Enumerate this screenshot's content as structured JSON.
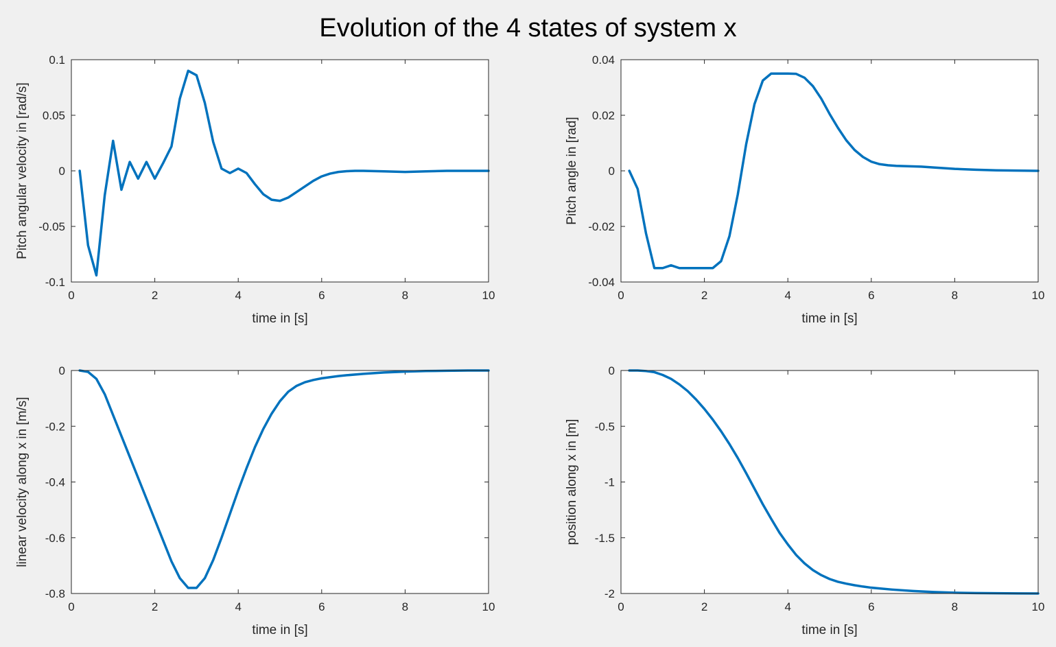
{
  "figure": {
    "title": "Evolution of the 4 states of system x",
    "line_color": "#0072BD",
    "axes_color": "#262626",
    "background": "#f0f0f0"
  },
  "chart_data": [
    {
      "type": "line",
      "xlabel": "time in [s]",
      "ylabel": "Pitch angular velocity in [rad/s]",
      "xlim": [
        0,
        10
      ],
      "ylim": [
        -0.1,
        0.1
      ],
      "xticks": [
        0,
        2,
        4,
        6,
        8,
        10
      ],
      "xtick_labels": [
        "0",
        "2",
        "4",
        "6",
        "8",
        "10"
      ],
      "yticks": [
        -0.1,
        -0.05,
        0,
        0.05,
        0.1
      ],
      "ytick_labels": [
        "-0.1",
        "-0.05",
        "0",
        "0.05",
        "0.1"
      ],
      "grid": false,
      "series": [
        {
          "x": [
            0.2,
            0.4,
            0.6,
            0.8,
            1.0,
            1.2,
            1.4,
            1.6,
            1.8,
            2.0,
            2.2,
            2.4,
            2.6,
            2.8,
            3.0,
            3.2,
            3.4,
            3.6,
            3.8,
            4.0,
            4.2,
            4.4,
            4.6,
            4.8,
            5.0,
            5.2,
            5.4,
            5.6,
            5.8,
            6.0,
            6.2,
            6.4,
            6.6,
            6.8,
            7.0,
            7.5,
            8.0,
            8.5,
            9.0,
            9.5,
            10.0
          ],
          "y": [
            0,
            -0.067,
            -0.094,
            -0.022,
            0.027,
            -0.017,
            0.008,
            -0.007,
            0.008,
            -0.007,
            0.007,
            0.022,
            0.065,
            0.09,
            0.086,
            0.061,
            0.026,
            0.002,
            -0.002,
            0.002,
            -0.002,
            -0.012,
            -0.021,
            -0.026,
            -0.027,
            -0.024,
            -0.019,
            -0.014,
            -0.009,
            -0.005,
            -0.0025,
            -0.001,
            -0.0003,
            0,
            0,
            -0.0005,
            -0.001,
            -0.0005,
            0,
            0,
            0
          ]
        }
      ]
    },
    {
      "type": "line",
      "xlabel": "time in [s]",
      "ylabel": "Pitch angle in [rad]",
      "xlim": [
        0,
        10
      ],
      "ylim": [
        -0.04,
        0.04
      ],
      "xticks": [
        0,
        2,
        4,
        6,
        8,
        10
      ],
      "xtick_labels": [
        "0",
        "2",
        "4",
        "6",
        "8",
        "10"
      ],
      "yticks": [
        -0.04,
        -0.02,
        0,
        0.02,
        0.04
      ],
      "ytick_labels": [
        "-0.04",
        "-0.02",
        "0",
        "0.02",
        "0.04"
      ],
      "grid": false,
      "series": [
        {
          "x": [
            0.2,
            0.4,
            0.6,
            0.8,
            1.0,
            1.2,
            1.4,
            1.6,
            1.8,
            2.0,
            2.2,
            2.4,
            2.6,
            2.8,
            3.0,
            3.2,
            3.4,
            3.6,
            3.8,
            4.0,
            4.2,
            4.4,
            4.6,
            4.8,
            5.0,
            5.2,
            5.4,
            5.6,
            5.8,
            6.0,
            6.2,
            6.4,
            6.6,
            6.8,
            7.0,
            7.2,
            7.5,
            8.0,
            8.5,
            9.0,
            9.5,
            10.0
          ],
          "y": [
            0,
            -0.0065,
            -0.0225,
            -0.035,
            -0.035,
            -0.034,
            -0.035,
            -0.035,
            -0.035,
            -0.035,
            -0.035,
            -0.0325,
            -0.0235,
            -0.0085,
            0.0095,
            0.024,
            0.0325,
            0.035,
            0.035,
            0.035,
            0.0349,
            0.0335,
            0.0305,
            0.026,
            0.0205,
            0.0155,
            0.011,
            0.0075,
            0.005,
            0.0033,
            0.0024,
            0.002,
            0.0018,
            0.0017,
            0.0016,
            0.0015,
            0.0012,
            0.0007,
            0.0004,
            0.0002,
            0.0001,
            0
          ]
        }
      ]
    },
    {
      "type": "line",
      "xlabel": "time in [s]",
      "ylabel": "linear velocity along x in [m/s]",
      "xlim": [
        0,
        10
      ],
      "ylim": [
        -0.8,
        0
      ],
      "xticks": [
        0,
        2,
        4,
        6,
        8,
        10
      ],
      "xtick_labels": [
        "0",
        "2",
        "4",
        "6",
        "8",
        "10"
      ],
      "yticks": [
        -0.8,
        -0.6,
        -0.4,
        -0.2,
        0
      ],
      "ytick_labels": [
        "-0.8",
        "-0.6",
        "-0.4",
        "-0.2",
        "0"
      ],
      "grid": false,
      "series": [
        {
          "x": [
            0.2,
            0.4,
            0.6,
            0.8,
            1.0,
            1.2,
            1.4,
            1.6,
            1.8,
            2.0,
            2.2,
            2.4,
            2.6,
            2.8,
            3.0,
            3.2,
            3.4,
            3.6,
            3.8,
            4.0,
            4.2,
            4.4,
            4.6,
            4.8,
            5.0,
            5.2,
            5.4,
            5.6,
            5.8,
            6.0,
            6.2,
            6.4,
            6.6,
            7.0,
            7.5,
            8.0,
            8.5,
            9.0,
            9.5,
            10.0
          ],
          "y": [
            0,
            -0.005,
            -0.03,
            -0.085,
            -0.16,
            -0.235,
            -0.31,
            -0.385,
            -0.46,
            -0.535,
            -0.61,
            -0.685,
            -0.745,
            -0.78,
            -0.78,
            -0.745,
            -0.68,
            -0.6,
            -0.515,
            -0.43,
            -0.35,
            -0.275,
            -0.21,
            -0.155,
            -0.11,
            -0.076,
            -0.055,
            -0.042,
            -0.034,
            -0.028,
            -0.024,
            -0.02,
            -0.017,
            -0.012,
            -0.007,
            -0.004,
            -0.002,
            -0.001,
            0,
            0
          ]
        }
      ]
    },
    {
      "type": "line",
      "xlabel": "time in [s]",
      "ylabel": "position along x in [m]",
      "xlim": [
        0,
        10
      ],
      "ylim": [
        -2,
        0
      ],
      "xticks": [
        0,
        2,
        4,
        6,
        8,
        10
      ],
      "xtick_labels": [
        "0",
        "2",
        "4",
        "6",
        "8",
        "10"
      ],
      "yticks": [
        -2,
        -1.5,
        -1,
        -0.5,
        0
      ],
      "ytick_labels": [
        "-2",
        "-1.5",
        "-1",
        "-0.5",
        "0"
      ],
      "grid": false,
      "series": [
        {
          "x": [
            0.2,
            0.4,
            0.6,
            0.8,
            1.0,
            1.2,
            1.4,
            1.6,
            1.8,
            2.0,
            2.2,
            2.4,
            2.6,
            2.8,
            3.0,
            3.2,
            3.4,
            3.6,
            3.8,
            4.0,
            4.2,
            4.4,
            4.6,
            4.8,
            5.0,
            5.2,
            5.4,
            5.6,
            5.8,
            6.0,
            6.5,
            7.0,
            7.5,
            8.0,
            8.5,
            9.0,
            9.5,
            10.0
          ],
          "y": [
            0,
            0,
            -0.005,
            -0.015,
            -0.04,
            -0.075,
            -0.125,
            -0.185,
            -0.26,
            -0.345,
            -0.44,
            -0.545,
            -0.66,
            -0.785,
            -0.92,
            -1.06,
            -1.2,
            -1.33,
            -1.455,
            -1.56,
            -1.655,
            -1.73,
            -1.79,
            -1.835,
            -1.87,
            -1.895,
            -1.912,
            -1.926,
            -1.938,
            -1.948,
            -1.965,
            -1.978,
            -1.987,
            -1.993,
            -1.996,
            -1.998,
            -1.999,
            -2.0
          ]
        }
      ]
    }
  ]
}
